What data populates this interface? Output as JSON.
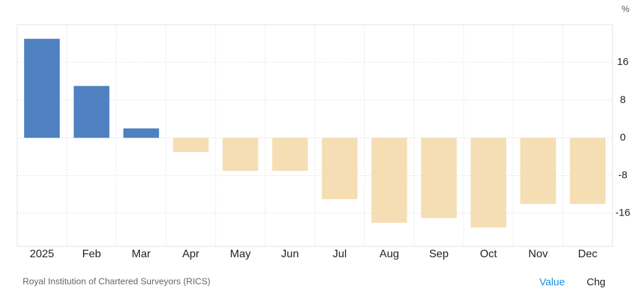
{
  "chart_data": {
    "type": "bar",
    "unit": "%",
    "categories": [
      "2025",
      "Feb",
      "Mar",
      "Apr",
      "May",
      "Jun",
      "Jul",
      "Aug",
      "Sep",
      "Oct",
      "Nov",
      "Dec"
    ],
    "values": [
      21,
      11,
      2,
      -3,
      -7,
      -7,
      -13,
      -18,
      -17,
      -19,
      -14,
      -14
    ],
    "color_positive": "#5081c0",
    "color_negative": "#f5deb3",
    "ylim": [
      -23,
      24
    ],
    "yticks": [
      -16,
      -8,
      0,
      8,
      16
    ],
    "grid": true
  },
  "footer": {
    "source": "Royal Institution of Chartered Surveyors (RICS)",
    "tabs": [
      "Value",
      "Chg"
    ]
  }
}
